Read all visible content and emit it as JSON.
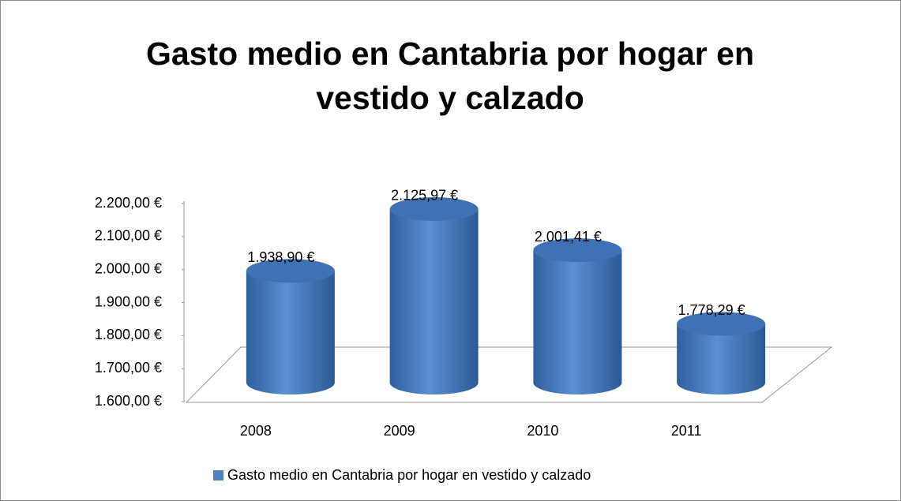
{
  "chart_data": {
    "type": "bar",
    "title": "Gasto medio en Cantabria por hogar en vestido y calzado",
    "categories": [
      "2008",
      "2009",
      "2010",
      "2011"
    ],
    "series": [
      {
        "name": "Gasto medio en Cantabria por hogar en vestido y calzado",
        "color": "#4f81bd",
        "values": [
          1938.9,
          2125.97,
          2001.41,
          1778.29
        ],
        "value_labels": [
          "1.938,90 €",
          "2.125,97 €",
          "2.001,41 €",
          "1.778,29 €"
        ]
      }
    ],
    "ylim": [
      1600,
      2200
    ],
    "yticks": [
      {
        "value": 1600,
        "label": "1.600,00 €"
      },
      {
        "value": 1700,
        "label": "1.700,00 €"
      },
      {
        "value": 1800,
        "label": "1.800,00 €"
      },
      {
        "value": 1900,
        "label": "1.900,00 €"
      },
      {
        "value": 2000,
        "label": "2.000,00 €"
      },
      {
        "value": 2100,
        "label": "2.100,00 €"
      },
      {
        "value": 2200,
        "label": "2.200,00 €"
      }
    ],
    "grid": false,
    "legend": "bottom"
  }
}
